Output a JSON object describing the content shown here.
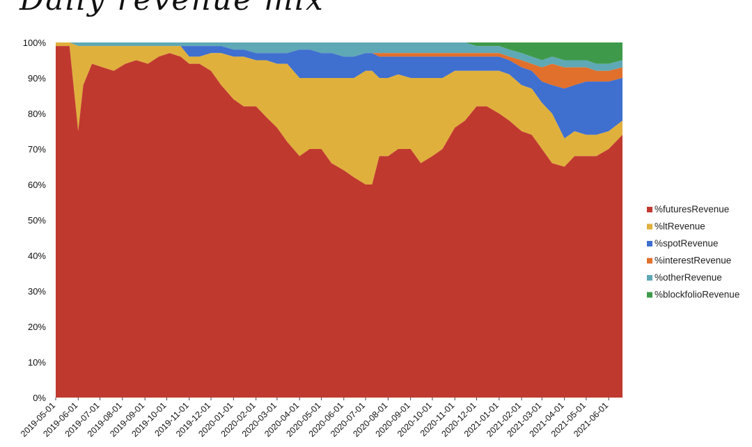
{
  "chart_data": {
    "type": "area",
    "stacked": "percent",
    "title": "Daily revenue mix",
    "xlabel": "",
    "ylabel": "",
    "ylim": [
      0,
      100
    ],
    "yticks": [
      "0%",
      "10%",
      "20%",
      "30%",
      "40%",
      "50%",
      "60%",
      "70%",
      "80%",
      "90%",
      "100%"
    ],
    "x_start": "2019-05-01",
    "x_end": "2021-06-20",
    "x_ticks": [
      "2019-05-01",
      "2019-06-01",
      "2019-07-01",
      "2019-08-01",
      "2019-09-01",
      "2019-10-01",
      "2019-11-01",
      "2019-12-01",
      "2020-01-01",
      "2020-02-01",
      "2020-03-01",
      "2020-04-01",
      "2020-05-01",
      "2020-06-01",
      "2020-07-01",
      "2020-08-01",
      "2020-09-01",
      "2020-10-01",
      "2020-11-01",
      "2020-12-01",
      "2021-01-01",
      "2021-02-01",
      "2021-03-01",
      "2021-04-01",
      "2021-05-01",
      "2021-06-01"
    ],
    "legend_position": "right",
    "grid": false,
    "x": [
      "2019-05-01",
      "2019-05-20",
      "2019-06-01",
      "2019-06-08",
      "2019-06-20",
      "2019-07-05",
      "2019-07-20",
      "2019-08-05",
      "2019-08-20",
      "2019-09-05",
      "2019-09-20",
      "2019-10-05",
      "2019-10-20",
      "2019-11-01",
      "2019-11-15",
      "2019-12-01",
      "2019-12-15",
      "2020-01-01",
      "2020-01-15",
      "2020-02-01",
      "2020-02-15",
      "2020-03-01",
      "2020-03-15",
      "2020-04-01",
      "2020-04-15",
      "2020-05-01",
      "2020-05-15",
      "2020-06-01",
      "2020-06-15",
      "2020-07-01",
      "2020-07-10",
      "2020-07-20",
      "2020-08-01",
      "2020-08-15",
      "2020-09-01",
      "2020-09-15",
      "2020-10-01",
      "2020-10-15",
      "2020-11-01",
      "2020-11-15",
      "2020-12-01",
      "2020-12-15",
      "2021-01-01",
      "2021-01-15",
      "2021-02-01",
      "2021-02-15",
      "2021-03-01",
      "2021-03-15",
      "2021-04-01",
      "2021-04-15",
      "2021-05-01",
      "2021-05-15",
      "2021-06-01",
      "2021-06-20"
    ],
    "series": [
      {
        "name": "%futuresRevenue",
        "color": "#c0392f",
        "values": [
          99,
          99,
          75,
          88,
          94,
          93,
          92,
          94,
          95,
          94,
          96,
          97,
          96,
          94,
          94,
          92,
          88,
          84,
          82,
          82,
          79,
          76,
          72,
          68,
          70,
          70,
          66,
          64,
          62,
          60,
          60,
          68,
          68,
          70,
          70,
          66,
          68,
          70,
          76,
          78,
          82,
          82,
          80,
          78,
          75,
          74,
          70,
          66,
          65,
          68,
          68,
          68,
          70,
          74
        ]
      },
      {
        "name": "%ltRevenue",
        "color": "#e0b03c",
        "values": [
          1,
          1,
          24,
          11,
          5,
          6,
          7,
          5,
          4,
          5,
          3,
          2,
          3,
          2,
          2,
          5,
          9,
          12,
          14,
          13,
          16,
          18,
          22,
          22,
          20,
          20,
          24,
          26,
          28,
          32,
          32,
          22,
          22,
          21,
          20,
          24,
          22,
          20,
          16,
          14,
          10,
          10,
          12,
          13,
          13,
          13,
          13,
          14,
          8,
          7,
          6,
          6,
          5,
          4
        ]
      },
      {
        "name": "%spotRevenue",
        "color": "#3f6fcf",
        "values": [
          0,
          0,
          0,
          0,
          0,
          0,
          0,
          0,
          0,
          0,
          0,
          0,
          0,
          3,
          3,
          2,
          2,
          2,
          2,
          2,
          2,
          3,
          3,
          8,
          8,
          7,
          7,
          6,
          6,
          5,
          5,
          6,
          6,
          5,
          6,
          6,
          6,
          6,
          4,
          4,
          4,
          4,
          4,
          4,
          5,
          5,
          6,
          8,
          14,
          13,
          15,
          15,
          14,
          12
        ]
      },
      {
        "name": "%interestRevenue",
        "color": "#e0702c",
        "values": [
          0,
          0,
          0,
          0,
          0,
          0,
          0,
          0,
          0,
          0,
          0,
          0,
          0,
          0,
          0,
          0,
          0,
          0,
          0,
          0,
          0,
          0,
          0,
          0,
          0,
          0,
          0,
          0,
          0,
          0,
          0,
          1,
          1,
          1,
          1,
          1,
          1,
          1,
          1,
          1,
          1,
          1,
          1,
          1,
          2,
          2,
          4,
          6,
          6,
          5,
          4,
          3,
          3,
          3
        ]
      },
      {
        "name": "%otherRevenue",
        "color": "#5fa8b5",
        "values": [
          0,
          0,
          1,
          1,
          1,
          1,
          1,
          1,
          1,
          1,
          1,
          1,
          1,
          1,
          1,
          1,
          1,
          2,
          2,
          3,
          3,
          3,
          3,
          2,
          2,
          3,
          3,
          4,
          4,
          3,
          3,
          3,
          3,
          3,
          3,
          3,
          3,
          3,
          3,
          3,
          2,
          2,
          2,
          2,
          2,
          2,
          2,
          2,
          2,
          2,
          2,
          2,
          2,
          2
        ]
      },
      {
        "name": "%blockfolioRevenue",
        "color": "#3e9a4a",
        "values": [
          0,
          0,
          0,
          0,
          0,
          0,
          0,
          0,
          0,
          0,
          0,
          0,
          0,
          0,
          0,
          0,
          0,
          0,
          0,
          0,
          0,
          0,
          0,
          0,
          0,
          0,
          0,
          0,
          0,
          0,
          0,
          0,
          0,
          0,
          0,
          0,
          0,
          0,
          0,
          0,
          1,
          1,
          1,
          2,
          3,
          4,
          5,
          4,
          5,
          5,
          5,
          6,
          6,
          5
        ]
      }
    ]
  }
}
